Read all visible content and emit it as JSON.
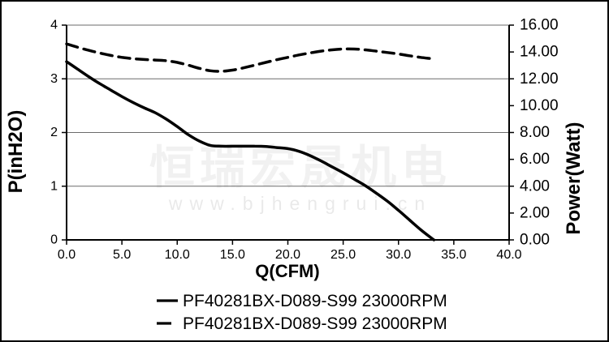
{
  "watermark": {
    "cn": "恒瑞宏晟机电",
    "url": "www.bjhengrui.cn"
  },
  "colors": {
    "curve": "#000000",
    "grid": "#6b6b6b",
    "axis": "#000000",
    "text": "#000000"
  },
  "chart_data": {
    "type": "line",
    "title": "",
    "xlabel": "Q(CFM)",
    "ylabel_left": "P(inH2O)",
    "ylabel_right": "Power(Watt)",
    "xlim": [
      0,
      40
    ],
    "ylim_left": [
      0,
      4
    ],
    "ylim_right": [
      0,
      16
    ],
    "grid": "horizontal-only",
    "gridlines_left": [
      1,
      2,
      3
    ],
    "legend_position": "bottom",
    "x_ticks": [
      {
        "value": 0,
        "label": "0.0"
      },
      {
        "value": 5,
        "label": "5.0"
      },
      {
        "value": 10,
        "label": "10.0"
      },
      {
        "value": 15,
        "label": "15.0"
      },
      {
        "value": 20,
        "label": "20.0"
      },
      {
        "value": 25,
        "label": "25.0"
      },
      {
        "value": 30,
        "label": "30.0"
      },
      {
        "value": 35,
        "label": "35.0"
      },
      {
        "value": 40,
        "label": "40.0"
      }
    ],
    "y_left_ticks": [
      {
        "value": 0,
        "label": "0"
      },
      {
        "value": 1,
        "label": "1"
      },
      {
        "value": 2,
        "label": "2"
      },
      {
        "value": 3,
        "label": "3"
      },
      {
        "value": 4,
        "label": "4"
      }
    ],
    "y_right_ticks": [
      {
        "value": 0,
        "label": "0.00"
      },
      {
        "value": 2,
        "label": "2.00"
      },
      {
        "value": 4,
        "label": "4.00"
      },
      {
        "value": 6,
        "label": "6.00"
      },
      {
        "value": 8,
        "label": "8.00"
      },
      {
        "value": 10,
        "label": "10.00"
      },
      {
        "value": 12,
        "label": "12.00"
      },
      {
        "value": 14,
        "label": "14.00"
      },
      {
        "value": 16,
        "label": "16.00"
      }
    ],
    "series": [
      {
        "name": "PF40281BX-D089-S99 23000RPM",
        "style": "solid",
        "axis": "left",
        "quantity": "static pressure P (inH2O) vs airflow Q (CFM)",
        "points": [
          [
            0,
            3.32
          ],
          [
            1,
            3.18
          ],
          [
            2,
            3.04
          ],
          [
            3,
            2.91
          ],
          [
            4,
            2.79
          ],
          [
            5,
            2.67
          ],
          [
            6,
            2.56
          ],
          [
            7,
            2.46
          ],
          [
            8,
            2.37
          ],
          [
            9,
            2.25
          ],
          [
            10,
            2.11
          ],
          [
            11,
            1.96
          ],
          [
            12,
            1.84
          ],
          [
            13,
            1.76
          ],
          [
            14,
            1.745
          ],
          [
            15,
            1.745
          ],
          [
            16,
            1.745
          ],
          [
            17,
            1.745
          ],
          [
            18,
            1.74
          ],
          [
            19,
            1.72
          ],
          [
            20,
            1.7
          ],
          [
            21,
            1.65
          ],
          [
            22,
            1.57
          ],
          [
            23,
            1.47
          ],
          [
            24,
            1.36
          ],
          [
            25,
            1.25
          ],
          [
            26,
            1.13
          ],
          [
            27,
            1.01
          ],
          [
            28,
            0.87
          ],
          [
            29,
            0.72
          ],
          [
            30,
            0.55
          ],
          [
            31,
            0.37
          ],
          [
            32,
            0.19
          ],
          [
            33,
            0.03
          ],
          [
            33.2,
            0
          ]
        ]
      },
      {
        "name": "PF40281BX-D089-S99 23000RPM",
        "style": "dashed",
        "axis": "right",
        "quantity": "input power (Watt) vs airflow Q (CFM)",
        "points": [
          [
            0,
            14.6
          ],
          [
            1,
            14.35
          ],
          [
            2,
            14.12
          ],
          [
            3,
            13.92
          ],
          [
            4,
            13.74
          ],
          [
            5,
            13.6
          ],
          [
            6,
            13.5
          ],
          [
            7,
            13.44
          ],
          [
            8,
            13.4
          ],
          [
            9,
            13.35
          ],
          [
            10,
            13.22
          ],
          [
            11,
            13.02
          ],
          [
            12,
            12.78
          ],
          [
            13,
            12.6
          ],
          [
            14,
            12.56
          ],
          [
            15,
            12.65
          ],
          [
            16,
            12.82
          ],
          [
            17,
            13.02
          ],
          [
            18,
            13.22
          ],
          [
            19,
            13.42
          ],
          [
            20,
            13.6
          ],
          [
            21,
            13.78
          ],
          [
            22,
            13.93
          ],
          [
            23,
            14.06
          ],
          [
            24,
            14.16
          ],
          [
            25,
            14.22
          ],
          [
            26,
            14.22
          ],
          [
            27,
            14.16
          ],
          [
            28,
            14.06
          ],
          [
            29,
            13.96
          ],
          [
            30,
            13.85
          ],
          [
            31,
            13.72
          ],
          [
            32,
            13.6
          ],
          [
            33,
            13.5
          ]
        ]
      }
    ]
  }
}
